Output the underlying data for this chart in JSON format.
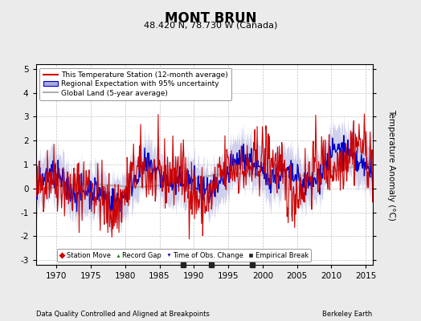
{
  "title": "MONT BRUN",
  "subtitle": "48.420 N, 78.730 W (Canada)",
  "ylabel": "Temperature Anomaly (°C)",
  "xlabel_left": "Data Quality Controlled and Aligned at Breakpoints",
  "xlabel_right": "Berkeley Earth",
  "ylim": [
    -3.2,
    5.2
  ],
  "xlim": [
    1967,
    2016
  ],
  "xticks": [
    1970,
    1975,
    1980,
    1985,
    1990,
    1995,
    2000,
    2005,
    2010,
    2015
  ],
  "yticks": [
    -3,
    -2,
    -1,
    0,
    1,
    2,
    3,
    4,
    5
  ],
  "bg_color": "#ebebeb",
  "plot_bg_color": "#ffffff",
  "red_line_color": "#cc0000",
  "blue_line_color": "#0000cc",
  "blue_fill_color": "#aaaadd",
  "gray_line_color": "#b0b0b0",
  "marker_colors": {
    "station_move": "#cc0000",
    "record_gap": "#007700",
    "time_of_obs": "#0000cc",
    "empirical_break": "#222222"
  },
  "empirical_breaks": [
    1988.5,
    1992.5,
    1998.5
  ],
  "legend_items": [
    "This Temperature Station (12-month average)",
    "Regional Expectation with 95% uncertainty",
    "Global Land (5-year average)"
  ],
  "marker_legend_items": [
    "Station Move",
    "Record Gap",
    "Time of Obs. Change",
    "Empirical Break"
  ]
}
